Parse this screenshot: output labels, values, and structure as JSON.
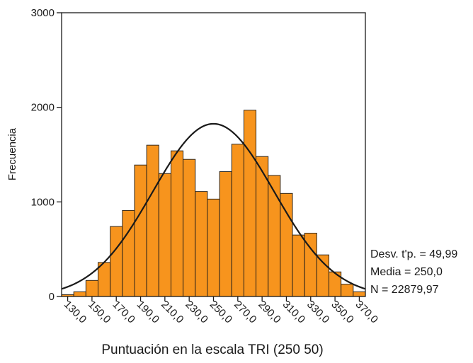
{
  "chart_data": {
    "type": "bar",
    "bar_color": "#F7941D",
    "curve_color": "#1a1a1a",
    "xlabel": "Puntuación en la escala TRI (250 50)",
    "ylabel": "Frecuencia",
    "ylim": [
      0,
      3000
    ],
    "y_ticks": [
      0,
      1000,
      2000,
      3000
    ],
    "y_tick_labels": [
      "0",
      "1000",
      "2000",
      "3000"
    ],
    "x_ticks": [
      130,
      150,
      170,
      190,
      210,
      230,
      250,
      270,
      290,
      310,
      330,
      350,
      370
    ],
    "x_tick_labels": [
      "130,0",
      "150,0",
      "170,0",
      "190,0",
      "210,0",
      "230,0",
      "250,0",
      "270,0",
      "290,0",
      "310,0",
      "330,0",
      "350,0",
      "370,0"
    ],
    "xlim": [
      125,
      375
    ],
    "bin_width": 10,
    "bins_start": [
      125,
      135,
      145,
      155,
      165,
      175,
      185,
      195,
      205,
      215,
      225,
      235,
      245,
      255,
      265,
      275,
      285,
      295,
      305,
      315,
      325,
      335,
      345,
      355,
      365
    ],
    "values": [
      20,
      50,
      170,
      360,
      740,
      910,
      1390,
      1600,
      1300,
      1540,
      1450,
      1110,
      1030,
      1320,
      1610,
      1970,
      1480,
      1280,
      1090,
      650,
      670,
      440,
      260,
      130,
      50
    ],
    "normal_curve": {
      "mean": 250.0,
      "sd": 49.99,
      "n": 22879.97
    },
    "stats": [
      "Desv. t'p. = 49,99",
      "Media = 250,0",
      "N = 22879,97"
    ],
    "grid": false
  }
}
